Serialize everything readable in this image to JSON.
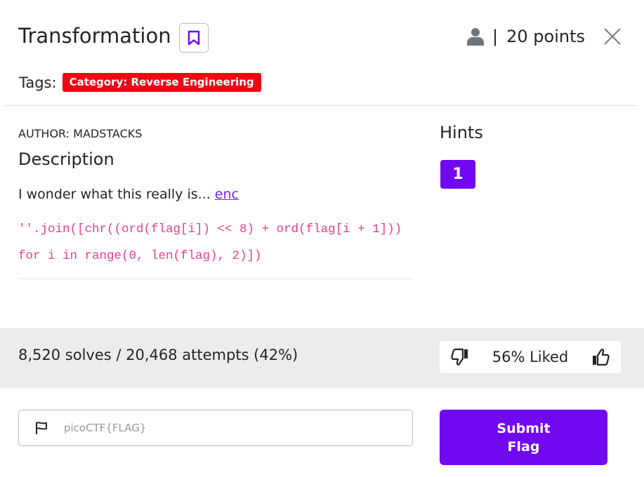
{
  "header": {
    "title": "Transformation",
    "points_separator": "|",
    "points": "20 points"
  },
  "tags": {
    "label": "Tags:",
    "badge": "Category: Reverse Engineering"
  },
  "description": {
    "author": "AUTHOR: MADSTACKS",
    "heading": "Description",
    "text": "I wonder what this really is...",
    "link": "enc",
    "code_line1": "''.join([chr((ord(flag[i]) << 8) + ord(flag[i + 1]))",
    "code_line2": "for i in range(0, len(flag), 2)])"
  },
  "hints": {
    "heading": "Hints",
    "items": [
      "1"
    ]
  },
  "stats": {
    "solves": "8,520 solves / 20,468 attempts (42%)",
    "liked": "56% Liked"
  },
  "submit": {
    "placeholder": "picoCTF{FLAG}",
    "button_label": "Submit Flag"
  },
  "colors": {
    "accent": "#7008f0",
    "tag_red": "#ee0712",
    "code_pink": "#e83e8c"
  },
  "icons": {
    "bookmark": "bookmark-icon",
    "user": "user-icon",
    "close": "close-icon",
    "thumbs_down": "thumbs-down-icon",
    "thumbs_up": "thumbs-up-icon",
    "flag": "flag-icon"
  }
}
